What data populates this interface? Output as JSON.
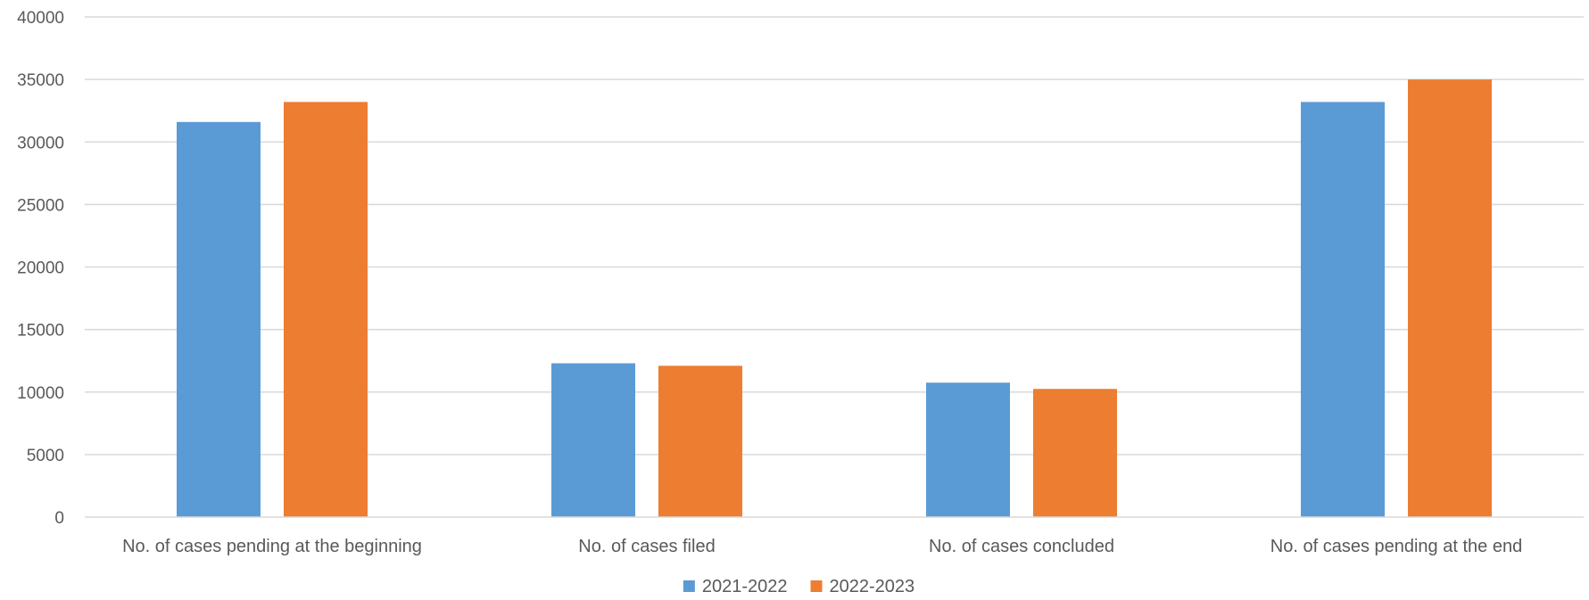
{
  "chart_data": {
    "type": "bar",
    "title": "",
    "xlabel": "",
    "ylabel": "",
    "categories": [
      "No. of cases pending at the beginning",
      "No. of cases filed",
      "No. of cases concluded",
      "No. of cases pending at the end"
    ],
    "series": [
      {
        "name": "2021-2022",
        "color": "#5B9BD5",
        "values": [
          31600,
          12300,
          10750,
          33200
        ]
      },
      {
        "name": "2022-2023",
        "color": "#ED7D31",
        "values": [
          33200,
          12100,
          10250,
          35000
        ]
      }
    ],
    "ylim": [
      0,
      40000
    ],
    "yticks": [
      "0",
      "5000",
      "10000",
      "15000",
      "20000",
      "25000",
      "30000",
      "35000",
      "40000"
    ],
    "grid": true,
    "legend_position": "bottom-center"
  }
}
